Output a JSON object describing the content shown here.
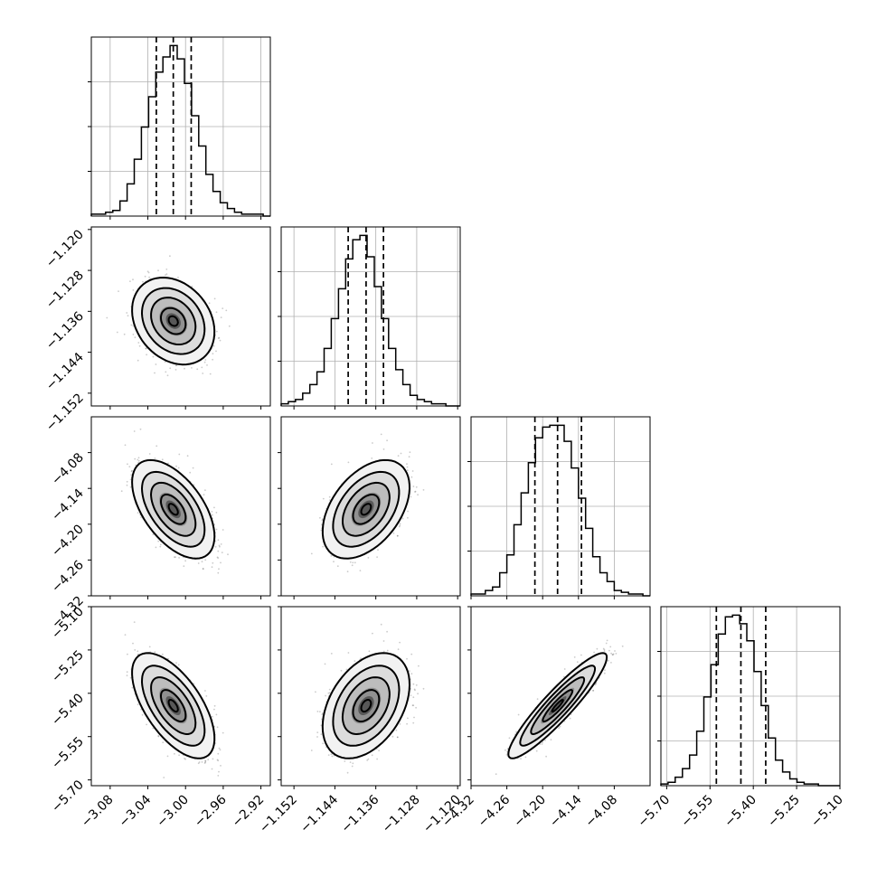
{
  "chart_data": {
    "type": "corner",
    "title": "",
    "quantile_lines": [
      0.16,
      0.5,
      0.84
    ],
    "grid": true,
    "parameters": [
      {
        "name": "",
        "mean": -3.013,
        "sd": 0.0175,
        "range": [
          -3.1,
          -2.91
        ],
        "quantiles": [
          -3.031,
          -3.013,
          -2.994
        ],
        "ticks": [
          "-3.08",
          "-3.04",
          "-3.00",
          "-2.96",
          "-2.92"
        ],
        "tick_values": [
          -3.08,
          -3.04,
          -3.0,
          -2.96,
          -2.92
        ],
        "hist_counts": [
          1,
          1,
          2,
          3,
          8,
          17,
          30,
          47,
          63,
          76,
          84,
          90,
          83,
          70,
          53,
          37,
          22,
          13,
          7,
          4,
          2,
          1,
          1,
          1,
          0
        ]
      },
      {
        "name": "",
        "mean": -1.1379,
        "sd": 0.0034,
        "range": [
          -1.1545,
          -1.1195
        ],
        "quantiles": [
          -1.1414,
          -1.1379,
          -1.1345
        ],
        "ticks": [
          "-1.152",
          "-1.144",
          "-1.136",
          "-1.128",
          "-1.120"
        ],
        "tick_values": [
          -1.152,
          -1.144,
          -1.136,
          -1.128,
          -1.12
        ],
        "hist_counts": [
          1,
          2,
          3,
          6,
          10,
          16,
          27,
          41,
          55,
          69,
          78,
          80,
          70,
          56,
          41,
          27,
          17,
          10,
          5,
          3,
          2,
          1,
          1,
          0,
          0
        ]
      },
      {
        "name": "",
        "mean": -4.175,
        "sd": 0.033,
        "range": [
          -4.32,
          -4.02
        ],
        "quantiles": [
          -4.213,
          -4.175,
          -4.135
        ],
        "ticks": [
          "-4.32",
          "-4.26",
          "-4.20",
          "-4.14",
          "-4.08"
        ],
        "tick_values": [
          -4.32,
          -4.26,
          -4.2,
          -4.14,
          -4.08
        ],
        "hist_counts": [
          1,
          1,
          3,
          5,
          13,
          23,
          40,
          58,
          75,
          89,
          95,
          96,
          96,
          87,
          72,
          55,
          38,
          22,
          13,
          8,
          3,
          2,
          1,
          1,
          0
        ]
      },
      {
        "name": "",
        "mean": -5.443,
        "sd": 0.073,
        "range": [
          -5.72,
          -5.1
        ],
        "quantiles": [
          -5.528,
          -5.443,
          -5.357
        ],
        "ticks": [
          "-5.70",
          "-5.55",
          "-5.40",
          "-5.25",
          "-5.10"
        ],
        "tick_values": [
          -5.7,
          -5.55,
          -5.4,
          -5.25,
          -5.1
        ],
        "hist_counts": [
          1,
          2,
          5,
          10,
          18,
          32,
          52,
          71,
          89,
          99,
          100,
          95,
          85,
          67,
          47,
          28,
          15,
          8,
          4,
          2,
          1,
          1,
          0,
          0,
          0
        ]
      }
    ],
    "correlations": {
      "1-0": -0.25,
      "2-0": -0.55,
      "2-1": 0.45,
      "3-0": -0.62,
      "3-1": 0.4,
      "3-2": 0.92
    },
    "colors": {
      "line": "#000000",
      "grid": "#b0b0b0",
      "scatter": "#444444"
    }
  }
}
